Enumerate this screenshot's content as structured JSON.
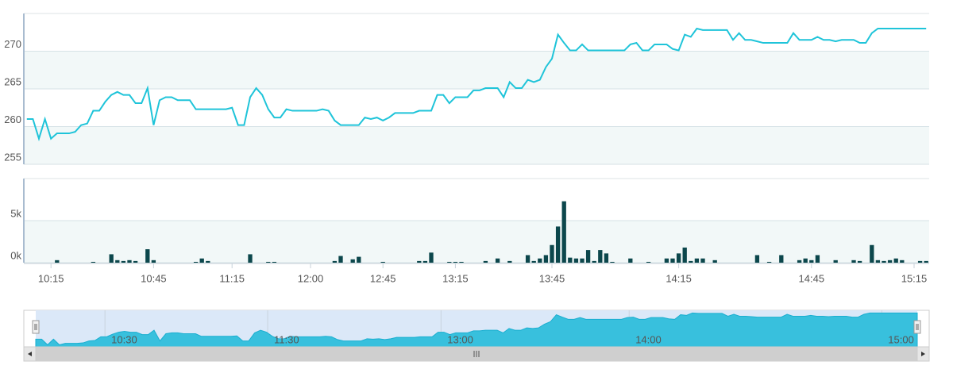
{
  "chart_data": [
    {
      "type": "line",
      "color": "#1fc4d9",
      "ylim": [
        255,
        275
      ],
      "yticks": [
        255,
        260,
        265,
        270
      ],
      "values": [
        261,
        261,
        258.4,
        261,
        258.4,
        259.1,
        259.1,
        259.1,
        259.3,
        260.2,
        260.4,
        262.1,
        262.1,
        263.3,
        264.2,
        264.6,
        264.2,
        264.2,
        263.1,
        263.1,
        265.1,
        260.2,
        263.5,
        263.9,
        263.9,
        263.5,
        263.5,
        263.5,
        262.3,
        262.3,
        262.3,
        262.3,
        262.3,
        262.3,
        262.5,
        260.2,
        260.2,
        263.9,
        265.1,
        264.2,
        262.3,
        261.2,
        261.2,
        262.3,
        262.1,
        262.1,
        262.1,
        262.1,
        262.1,
        262.3,
        262.1,
        260.8,
        260.2,
        260.2,
        260.2,
        260.2,
        261.2,
        261,
        261.2,
        260.8,
        261.2,
        261.8,
        261.8,
        261.8,
        261.8,
        262.1,
        262.1,
        262.1,
        264.2,
        264.2,
        263.1,
        263.9,
        263.9,
        263.9,
        264.8,
        264.8,
        265.1,
        265.1,
        265.1,
        263.9,
        265.9,
        265.1,
        265.1,
        266.2,
        265.9,
        266.2,
        267.9,
        269,
        272.2,
        271.1,
        270.1,
        270.1,
        270.9,
        270.1,
        270.1,
        270.1,
        270.1,
        270.1,
        270.1,
        270.1,
        270.9,
        271.1,
        270.1,
        270.1,
        270.9,
        270.9,
        270.9,
        270.3,
        270.1,
        272.2,
        271.9,
        273,
        272.8,
        272.8,
        272.8,
        272.8,
        272.8,
        271.5,
        272.4,
        271.5,
        271.5,
        271.3,
        271.1,
        271.1,
        271.1,
        271.1,
        271.1,
        272.4,
        271.5,
        271.5,
        271.5,
        271.9,
        271.5,
        271.5,
        271.3,
        271.5,
        271.5,
        271.5,
        271.1,
        271.1,
        272.4,
        273,
        273,
        273,
        273,
        273,
        273,
        273,
        273,
        273
      ]
    },
    {
      "type": "bar",
      "color": "#0c474c",
      "ylim": [
        0,
        10000
      ],
      "yticks": [
        {
          "value": 0,
          "label": "0k"
        },
        {
          "value": 5000,
          "label": "5k"
        }
      ],
      "categories": [
        null,
        null,
        null,
        null,
        "10:15",
        null,
        null,
        null,
        null,
        null,
        null,
        null,
        null,
        null,
        null,
        null,
        null,
        null,
        null,
        null,
        null,
        "10:45",
        null,
        null,
        null,
        null,
        null,
        null,
        null,
        null,
        null,
        null,
        null,
        null,
        "11:15",
        null,
        null,
        null,
        null,
        null,
        null,
        null,
        null,
        null,
        null,
        null,
        null,
        "12:00",
        null,
        null,
        null,
        null,
        null,
        null,
        null,
        null,
        null,
        null,
        null,
        "12:45",
        null,
        null,
        null,
        null,
        null,
        null,
        null,
        null,
        null,
        null,
        null,
        "13:15",
        null,
        null,
        null,
        null,
        null,
        null,
        null,
        null,
        null,
        null,
        null,
        null,
        null,
        null,
        null,
        "13:45",
        null,
        null,
        null,
        null,
        null,
        null,
        null,
        null,
        null,
        null,
        null,
        null,
        null,
        null,
        null,
        null,
        null,
        null,
        null,
        null,
        "14:15",
        null,
        null,
        null,
        null,
        null,
        null,
        null,
        null,
        null,
        null,
        null,
        null,
        null,
        null,
        null,
        null,
        null,
        null,
        null,
        null,
        null,
        "14:45",
        null,
        null,
        null,
        null,
        null,
        null,
        null,
        null,
        null,
        null,
        null,
        null,
        null,
        null,
        null,
        null,
        "15:15",
        null,
        null
      ],
      "values": [
        0,
        0,
        0,
        0,
        0,
        300,
        0,
        0,
        0,
        0,
        0,
        100,
        0,
        0,
        1000,
        300,
        200,
        300,
        200,
        0,
        1600,
        300,
        0,
        0,
        0,
        0,
        0,
        0,
        100,
        500,
        200,
        0,
        0,
        0,
        0,
        0,
        0,
        1000,
        0,
        0,
        100,
        100,
        0,
        0,
        0,
        0,
        0,
        0,
        0,
        0,
        0,
        200,
        800,
        0,
        400,
        700,
        0,
        0,
        0,
        100,
        0,
        0,
        0,
        0,
        0,
        200,
        200,
        1200,
        0,
        0,
        100,
        100,
        100,
        0,
        0,
        0,
        200,
        0,
        500,
        0,
        200,
        0,
        0,
        900,
        200,
        500,
        900,
        2100,
        4300,
        7300,
        600,
        500,
        500,
        1500,
        200,
        1500,
        1100,
        100,
        0,
        0,
        500,
        0,
        0,
        100,
        0,
        0,
        500,
        500,
        1100,
        1800,
        200,
        500,
        500,
        0,
        300,
        0,
        0,
        0,
        0,
        0,
        0,
        900,
        0,
        100,
        0,
        900,
        0,
        0,
        300,
        500,
        300,
        900,
        0,
        0,
        300,
        0,
        0,
        300,
        200,
        0,
        2100,
        300,
        200,
        300,
        500,
        300,
        0,
        0,
        200,
        200
      ]
    },
    {
      "type": "area",
      "color": "#38c0dd",
      "xlim": [
        0,
        149
      ],
      "ylim": [
        257.5,
        273.5
      ],
      "xticks": [
        {
          "value": 11.7,
          "label": "10:30"
        },
        {
          "value": 39.2,
          "label": "11:30"
        },
        {
          "value": 68.5,
          "label": "13:00"
        },
        {
          "value": 100.3,
          "label": "14:00"
        },
        {
          "value": 143,
          "label": "15:00"
        }
      ]
    }
  ]
}
